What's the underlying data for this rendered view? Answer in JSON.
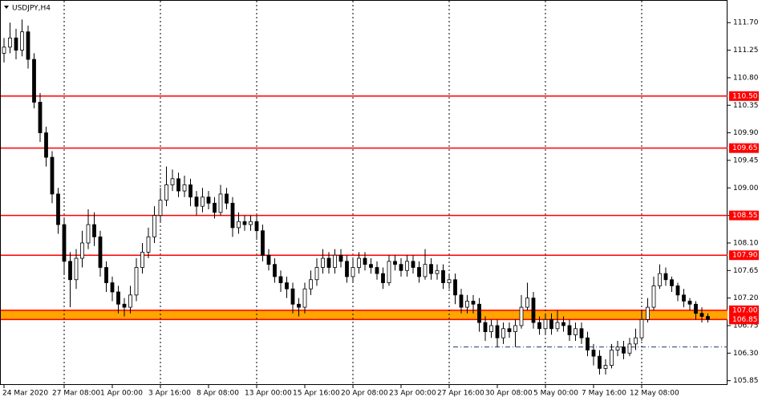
{
  "chart_data": {
    "type": "candlestick",
    "title": "USDJPY,H4",
    "x": [
      "24 Mar 2020",
      null,
      null,
      null,
      null,
      null,
      null,
      null,
      null,
      null,
      "27 Mar 08:00",
      null,
      null,
      null,
      null,
      null,
      null,
      null,
      "1 Apr 00:00",
      null,
      null,
      null,
      null,
      null,
      null,
      null,
      "3 Apr 16:00",
      null,
      null,
      null,
      null,
      null,
      null,
      null,
      "8 Apr 08:00",
      null,
      null,
      null,
      null,
      null,
      null,
      null,
      "13 Apr 00:00",
      null,
      null,
      null,
      null,
      null,
      null,
      null,
      "15 Apr 16:00",
      null,
      null,
      null,
      null,
      null,
      null,
      null,
      "20 Apr 08:00",
      null,
      null,
      null,
      null,
      null,
      null,
      null,
      "23 Apr 00:00",
      null,
      null,
      null,
      null,
      null,
      null,
      null,
      "27 Apr 16:00",
      null,
      null,
      null,
      null,
      null,
      null,
      null,
      "30 Apr 08:00",
      null,
      null,
      null,
      null,
      null,
      null,
      null,
      "5 May 00:00",
      null,
      null,
      null,
      null,
      null,
      null,
      null,
      "7 May 16:00",
      null,
      null,
      null,
      null,
      null,
      null,
      null,
      "12 May 08:00",
      null,
      null,
      null,
      null,
      null,
      null,
      null,
      null,
      null,
      null,
      null
    ],
    "open": [
      111.2,
      111.3,
      111.45,
      111.25,
      111.55,
      111.1,
      110.4,
      109.9,
      109.5,
      108.9,
      108.4,
      107.8,
      107.5,
      107.85,
      108.1,
      108.4,
      108.2,
      107.7,
      107.45,
      107.3,
      107.1,
      107.05,
      107.25,
      107.7,
      107.95,
      108.2,
      108.55,
      108.8,
      109.05,
      109.15,
      108.95,
      109.05,
      108.85,
      108.7,
      108.85,
      108.75,
      108.6,
      108.9,
      108.75,
      108.35,
      108.45,
      108.4,
      108.45,
      108.3,
      107.9,
      107.75,
      107.55,
      107.45,
      107.35,
      107.1,
      107.05,
      107.35,
      107.5,
      107.7,
      107.85,
      107.7,
      107.9,
      107.8,
      107.55,
      107.7,
      107.85,
      107.75,
      107.7,
      107.6,
      107.45,
      107.8,
      107.75,
      107.65,
      107.8,
      107.7,
      107.55,
      107.75,
      107.6,
      107.65,
      107.45,
      107.5,
      107.25,
      107.05,
      107.15,
      107.1,
      106.8,
      106.65,
      106.75,
      106.55,
      106.7,
      106.65,
      106.75,
      107.05,
      107.2,
      106.8,
      106.7,
      106.85,
      106.7,
      106.8,
      106.75,
      106.6,
      106.7,
      106.55,
      106.35,
      106.25,
      106.05,
      106.1,
      106.35,
      106.4,
      106.3,
      106.45,
      106.55,
      106.85,
      107.05,
      107.4,
      107.6,
      107.5,
      107.4,
      107.25,
      107.15,
      107.1,
      106.95,
      106.9
    ],
    "high": [
      111.45,
      111.7,
      111.6,
      111.75,
      111.65,
      111.2,
      110.55,
      110,
      109.6,
      109,
      108.5,
      107.95,
      108,
      108.3,
      108.65,
      108.6,
      108.3,
      107.8,
      107.55,
      107.4,
      107.2,
      107.4,
      107.85,
      108.1,
      108.35,
      108.7,
      109,
      109.35,
      109.3,
      109.25,
      109.2,
      109.15,
      108.95,
      109,
      108.95,
      108.85,
      109.05,
      109,
      108.85,
      108.6,
      108.55,
      108.55,
      108.55,
      108.4,
      108,
      107.85,
      107.65,
      107.55,
      107.45,
      107.2,
      107.45,
      107.65,
      107.85,
      108,
      107.95,
      108,
      108,
      107.9,
      107.85,
      107.95,
      107.95,
      107.85,
      107.8,
      107.7,
      107.9,
      107.9,
      107.85,
      107.9,
      107.9,
      107.8,
      108,
      107.85,
      107.75,
      107.75,
      107.6,
      107.6,
      107.35,
      107.25,
      107.25,
      107.2,
      106.9,
      106.85,
      106.85,
      106.8,
      106.8,
      106.85,
      107.25,
      107.45,
      107.3,
      106.9,
      106.95,
      106.95,
      107,
      106.9,
      106.85,
      106.8,
      106.8,
      106.65,
      106.45,
      106.35,
      106.2,
      106.45,
      106.5,
      106.5,
      106.55,
      106.7,
      107,
      107.2,
      107.55,
      107.75,
      107.7,
      107.55,
      107.45,
      107.35,
      107.2,
      107.15,
      107.05,
      106.95
    ],
    "low": [
      111.05,
      111.2,
      111.1,
      111.15,
      110.95,
      110.3,
      109.75,
      109.35,
      108.75,
      108.25,
      107.6,
      107.05,
      107.35,
      107.7,
      108,
      108.05,
      107.55,
      107.3,
      107.15,
      106.95,
      106.9,
      106.95,
      107.15,
      107.6,
      107.85,
      108.1,
      108.45,
      108.7,
      108.95,
      108.85,
      108.85,
      108.7,
      108.55,
      108.6,
      108.65,
      108.5,
      108.55,
      108.65,
      108.2,
      108.25,
      108.3,
      108.3,
      108.15,
      107.8,
      107.65,
      107.45,
      107.3,
      107.2,
      106.95,
      106.9,
      106.95,
      107.25,
      107.4,
      107.6,
      107.6,
      107.6,
      107.7,
      107.45,
      107.45,
      107.6,
      107.65,
      107.6,
      107.5,
      107.35,
      107.4,
      107.65,
      107.55,
      107.55,
      107.6,
      107.45,
      107.5,
      107.5,
      107.5,
      107.35,
      107.35,
      107.1,
      106.95,
      106.95,
      106.95,
      106.65,
      106.5,
      106.55,
      106.4,
      106.45,
      106.55,
      106.4,
      106.7,
      107,
      106.7,
      106.6,
      106.6,
      106.6,
      106.65,
      106.65,
      106.5,
      106.5,
      106.45,
      106.25,
      106.1,
      105.95,
      105.95,
      106.05,
      106.25,
      106.2,
      106.25,
      106.35,
      106.5,
      106.8,
      107,
      107.35,
      107.4,
      107.3,
      107.15,
      107.05,
      107,
      106.85,
      106.8,
      106.8
    ],
    "close": [
      111.3,
      111.45,
      111.25,
      111.55,
      111.1,
      110.4,
      109.9,
      109.5,
      108.9,
      108.4,
      107.8,
      107.5,
      107.85,
      108.1,
      108.4,
      108.2,
      107.7,
      107.45,
      107.3,
      107.1,
      107.05,
      107.25,
      107.7,
      107.95,
      108.2,
      108.55,
      108.8,
      109.05,
      109.15,
      108.95,
      109.05,
      108.85,
      108.7,
      108.85,
      108.75,
      108.6,
      108.9,
      108.75,
      108.35,
      108.45,
      108.4,
      108.45,
      108.3,
      107.9,
      107.75,
      107.55,
      107.45,
      107.35,
      107.1,
      107.05,
      107.35,
      107.5,
      107.7,
      107.85,
      107.7,
      107.9,
      107.8,
      107.55,
      107.7,
      107.85,
      107.75,
      107.7,
      107.6,
      107.45,
      107.8,
      107.75,
      107.65,
      107.8,
      107.7,
      107.55,
      107.75,
      107.6,
      107.65,
      107.45,
      107.5,
      107.25,
      107.05,
      107.15,
      107.1,
      106.8,
      106.65,
      106.75,
      106.55,
      106.7,
      106.65,
      106.75,
      107.05,
      107.2,
      106.8,
      106.7,
      106.85,
      106.7,
      106.8,
      106.75,
      106.6,
      106.7,
      106.55,
      106.35,
      106.25,
      106.05,
      106.1,
      106.35,
      106.4,
      106.3,
      106.45,
      106.55,
      106.85,
      107.05,
      107.4,
      107.6,
      107.5,
      107.4,
      107.25,
      107.15,
      107.1,
      106.95,
      106.9,
      106.85
    ],
    "ylim": [
      105.78,
      112.07
    ],
    "yticks": [
      {
        "value": 111.7,
        "label": "111.70"
      },
      111.25,
      {
        "value": 110.8,
        "label": "110.80"
      },
      110.35,
      {
        "value": 109.9,
        "label": "109.90"
      },
      109.45,
      {
        "value": 109,
        "label": "109.00"
      },
      108.55,
      {
        "value": 108.1,
        "label": "108.10"
      },
      107.65,
      {
        "value": 107.2,
        "label": "107.20"
      },
      106.75,
      {
        "value": 106.3,
        "label": "106.30"
      },
      105.85
    ],
    "levels": [
      {
        "value": 110.5,
        "label": "110.50"
      },
      {
        "value": 109.65,
        "label": "109.65"
      },
      108.55,
      {
        "value": 107.9,
        "label": "107.90"
      }
    ],
    "zone": [
      {
        "value": 107,
        "label": "107.00"
      },
      106.85
    ],
    "dashed_level": 106.4,
    "up_color": "#ffffff",
    "down_color": "#000000",
    "level_color": "#ff0000",
    "zone_color": "#ffa500",
    "dashed_color": "#1f3a6e"
  }
}
